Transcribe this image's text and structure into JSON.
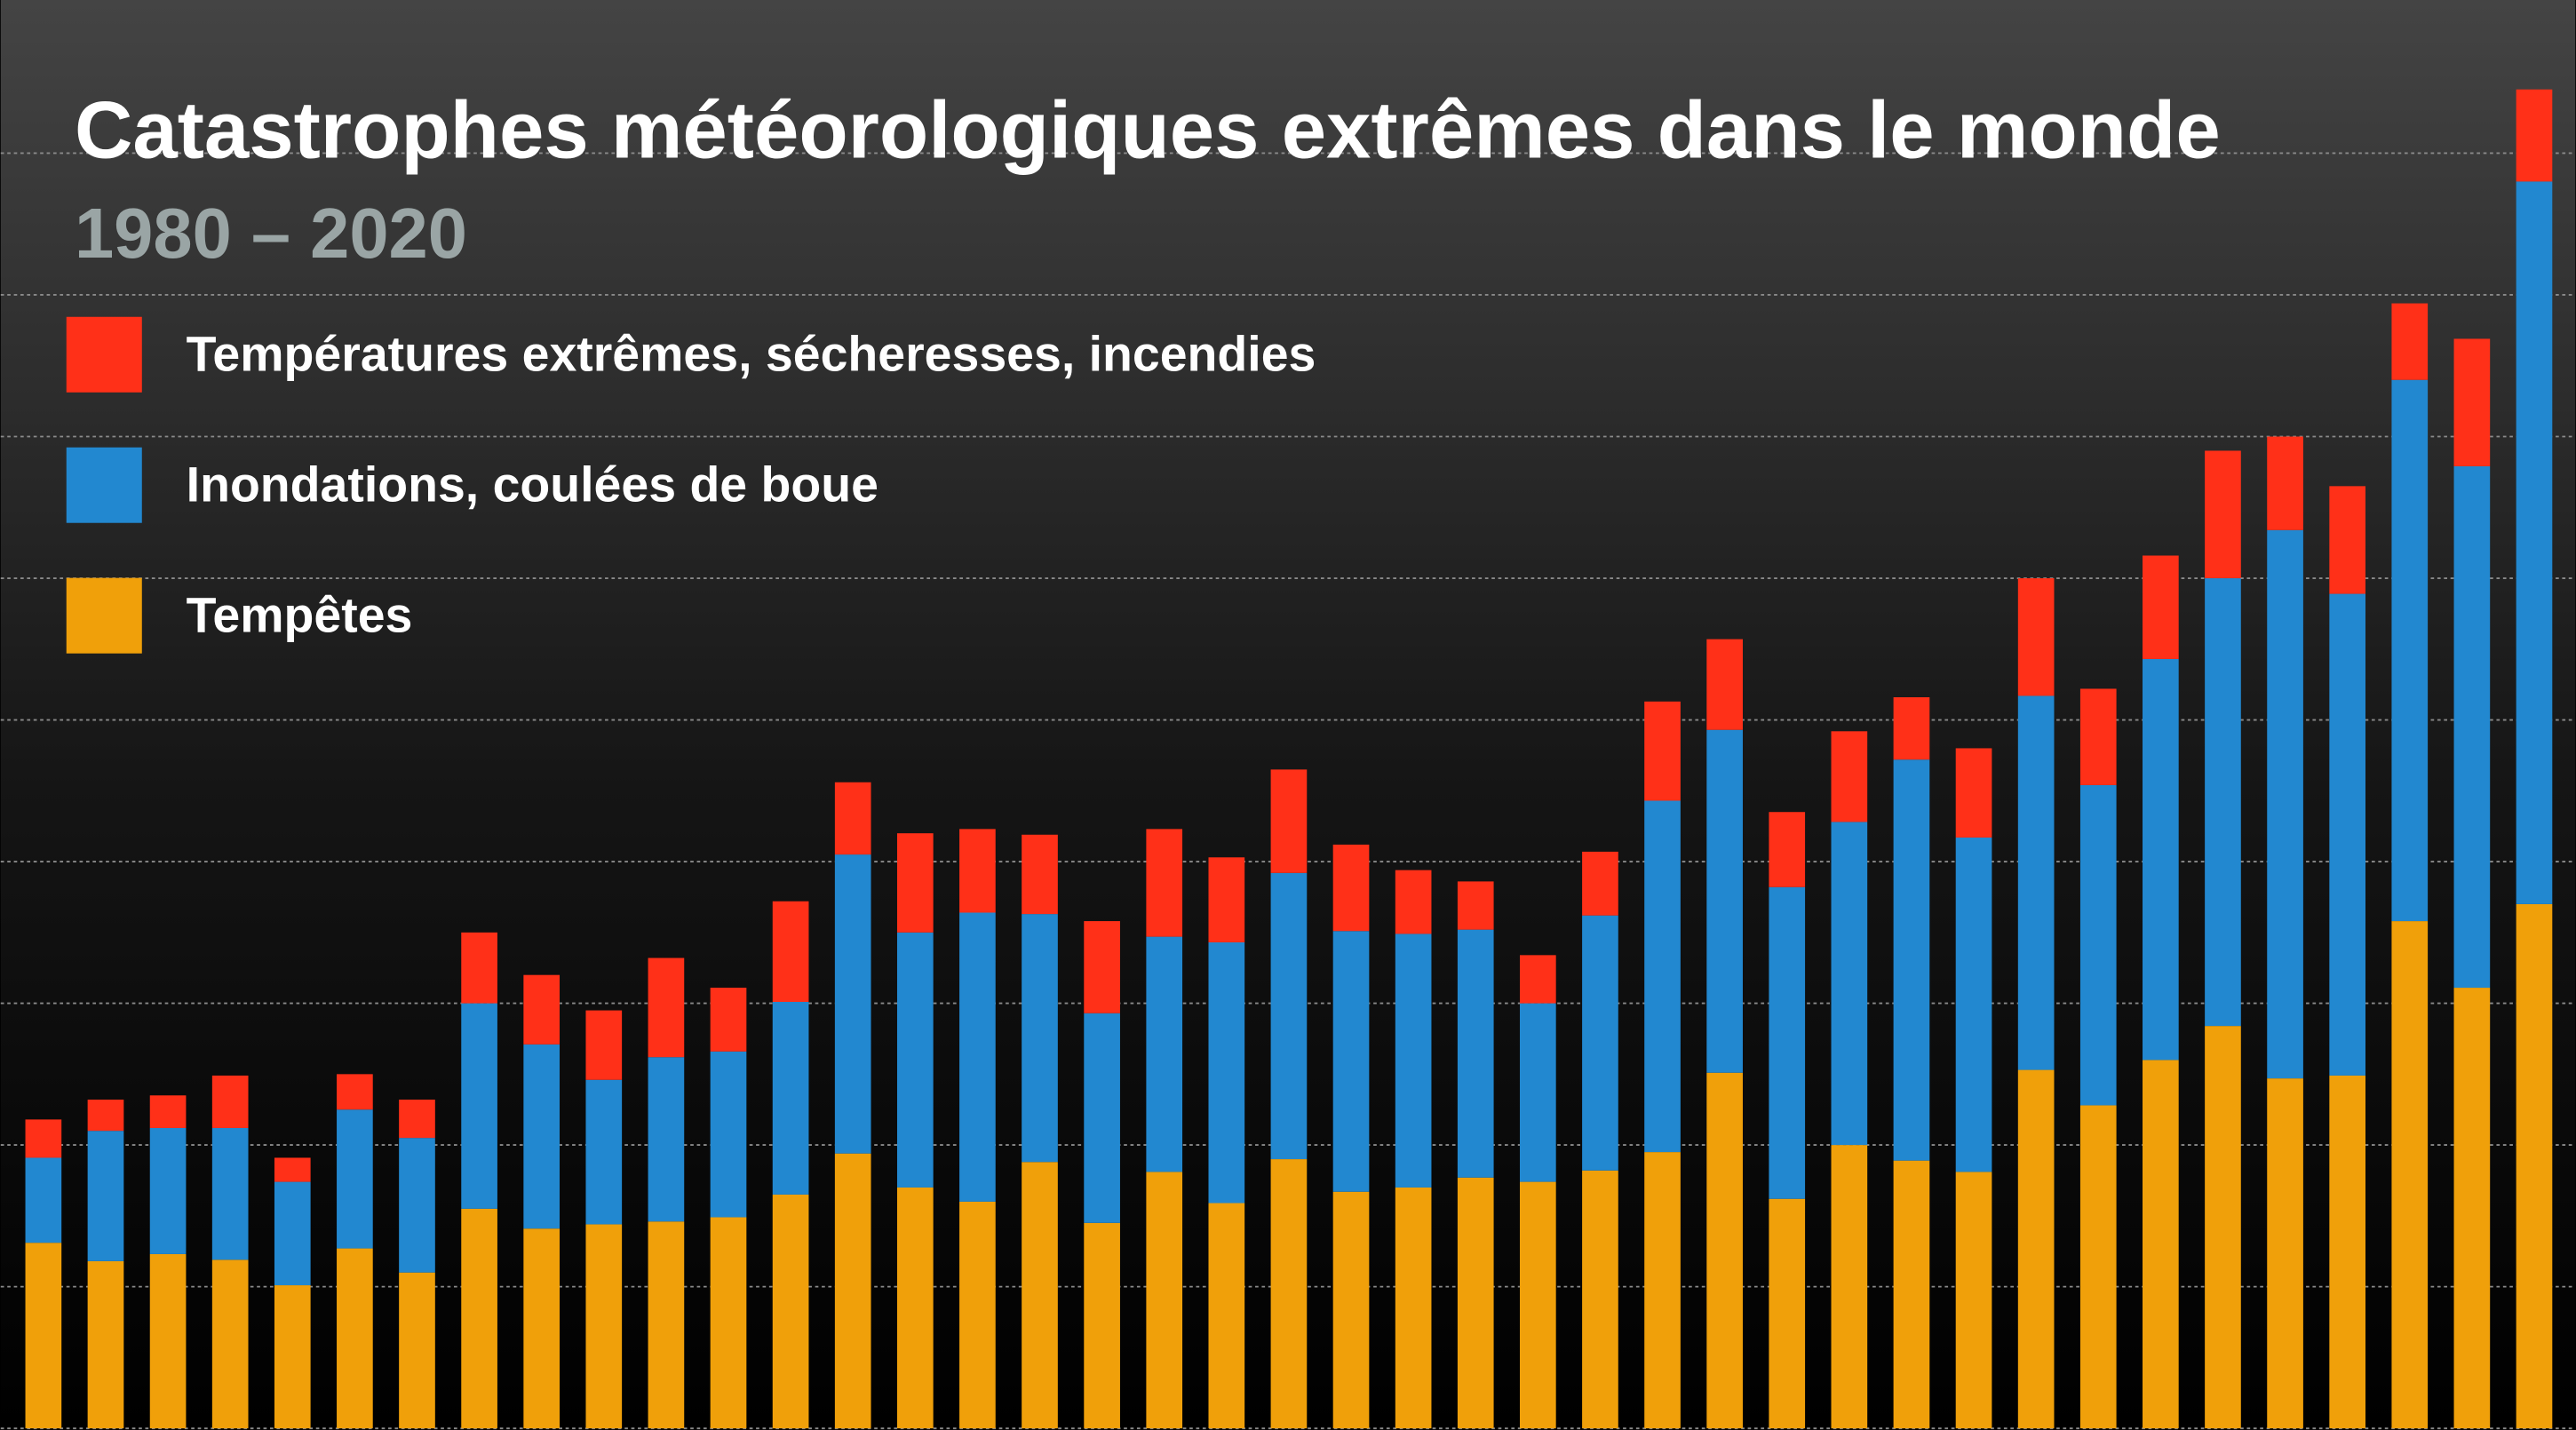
{
  "chart_data": {
    "type": "stacked-bar",
    "title": "Catastrophes météorologiques extrêmes dans le monde",
    "subtitle": "1980 – 2020",
    "ylim": [
      0,
      1000
    ],
    "yticks": [
      0,
      100,
      200,
      300,
      400,
      500,
      600,
      700,
      800,
      900
    ],
    "grid": true,
    "legend": "top-left",
    "series": [
      {
        "name": "Tempêtes",
        "color": "#f0a00a",
        "values": [
          131,
          118,
          123,
          119,
          101,
          127,
          110,
          155,
          141,
          144,
          146,
          149,
          165,
          194,
          170,
          160,
          188,
          145,
          181,
          159,
          190,
          167,
          170,
          177,
          174,
          182,
          195,
          251,
          162,
          200,
          189,
          181,
          253,
          228,
          260,
          284,
          247,
          249,
          358,
          311,
          370
        ]
      },
      {
        "name": "Inondations, coulées de boue",
        "color": "#2288d0",
        "values": [
          60,
          92,
          89,
          93,
          73,
          98,
          95,
          145,
          130,
          102,
          116,
          117,
          136,
          211,
          180,
          204,
          175,
          148,
          166,
          184,
          202,
          184,
          179,
          175,
          126,
          180,
          248,
          242,
          220,
          228,
          283,
          236,
          264,
          226,
          283,
          316,
          387,
          340,
          382,
          368,
          510
        ]
      },
      {
        "name": "Températures extrêmes, sécheresses, incendies",
        "color": "#ff3018",
        "values": [
          27,
          22,
          23,
          37,
          17,
          25,
          27,
          50,
          49,
          49,
          70,
          45,
          71,
          51,
          70,
          59,
          56,
          65,
          76,
          60,
          73,
          61,
          45,
          34,
          34,
          45,
          70,
          64,
          53,
          64,
          44,
          63,
          83,
          68,
          73,
          90,
          66,
          76,
          54,
          90,
          65
        ]
      }
    ]
  }
}
